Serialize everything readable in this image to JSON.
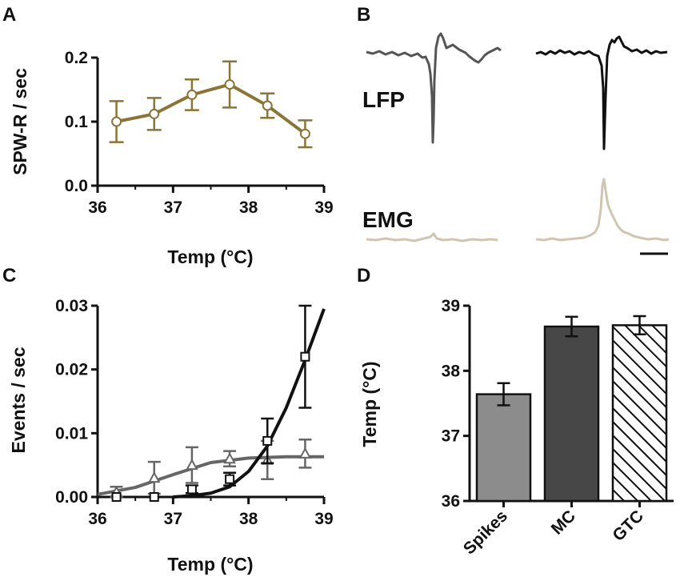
{
  "panels": {
    "a": {
      "letter": "A"
    },
    "b": {
      "letter": "B"
    },
    "c": {
      "letter": "C"
    },
    "d": {
      "letter": "D"
    }
  },
  "traces": {
    "lfp_label": "LFP",
    "emg_label": "EMG",
    "colors": {
      "lfp_left": "#555555",
      "lfp_right": "#111111",
      "emg": "#cfc6b2",
      "scale_bar": "#111111"
    }
  },
  "chart_data": [
    {
      "id": "A",
      "type": "line",
      "title": "",
      "xlabel": "Temp (°C)",
      "ylabel": "SPW-R / sec",
      "xlim": [
        36,
        39
      ],
      "ylim": [
        0,
        0.2
      ],
      "xticks": [
        36,
        37,
        38,
        39
      ],
      "xtick_labels": [
        "36",
        "37",
        "38",
        "39"
      ],
      "yticks": [
        0,
        0.1,
        0.2
      ],
      "ytick_labels": [
        "0.0",
        "0.1",
        "0.2"
      ],
      "color": "#8a7438",
      "series": [
        {
          "name": "SPW-R",
          "marker": "circle",
          "x": [
            36.25,
            36.75,
            37.25,
            37.75,
            38.25,
            38.75
          ],
          "y": [
            0.1,
            0.112,
            0.142,
            0.158,
            0.125,
            0.081
          ],
          "err": [
            0.032,
            0.025,
            0.024,
            0.036,
            0.019,
            0.021
          ]
        }
      ]
    },
    {
      "id": "C",
      "type": "scatter",
      "title": "",
      "xlabel": "Temp (°C)",
      "ylabel": "Events / sec",
      "xlim": [
        36,
        39
      ],
      "ylim": [
        0,
        0.03
      ],
      "xticks": [
        36,
        37,
        38,
        39
      ],
      "xtick_labels": [
        "36",
        "37",
        "38",
        "39"
      ],
      "yticks": [
        0,
        0.01,
        0.02,
        0.03
      ],
      "ytick_labels": [
        "0.00",
        "0.01",
        "0.02",
        "0.03"
      ],
      "series": [
        {
          "name": "triangles",
          "marker": "triangle",
          "color": "#666666",
          "x": [
            36.25,
            36.75,
            37.25,
            37.75,
            38.25,
            38.75
          ],
          "y": [
            0.0008,
            0.003,
            0.005,
            0.006,
            0.0058,
            0.0068
          ],
          "err": [
            0.0008,
            0.0025,
            0.0028,
            0.0012,
            0.003,
            0.0022
          ],
          "fit": [
            [
              36.0,
              0.0004
            ],
            [
              36.5,
              0.0015
            ],
            [
              37.0,
              0.0035
            ],
            [
              37.5,
              0.0054
            ],
            [
              38.0,
              0.0061
            ],
            [
              38.5,
              0.0063
            ],
            [
              39.0,
              0.0063
            ]
          ]
        },
        {
          "name": "squares",
          "marker": "square",
          "color": "#111111",
          "x": [
            36.25,
            36.75,
            37.25,
            37.75,
            38.25,
            38.75
          ],
          "y": [
            0.0,
            0.0,
            0.0012,
            0.0028,
            0.0088,
            0.022
          ],
          "err": [
            0.0,
            0.0,
            0.0006,
            0.001,
            0.0035,
            0.008
          ],
          "fit": [
            [
              37.0,
              0.0
            ],
            [
              37.25,
              0.0002
            ],
            [
              37.5,
              0.0006
            ],
            [
              37.75,
              0.0016
            ],
            [
              38.0,
              0.004
            ],
            [
              38.25,
              0.008
            ],
            [
              38.5,
              0.014
            ],
            [
              38.75,
              0.0215
            ],
            [
              39.0,
              0.0295
            ]
          ]
        }
      ]
    },
    {
      "id": "D",
      "type": "bar",
      "title": "",
      "xlabel": "",
      "ylabel": "Temp (°C)",
      "ylim": [
        36,
        39
      ],
      "yticks": [
        36,
        37,
        38,
        39
      ],
      "ytick_labels": [
        "36",
        "37",
        "38",
        "39"
      ],
      "categories": [
        "Spikes",
        "MC",
        "GTC"
      ],
      "values": [
        37.64,
        38.68,
        38.7
      ],
      "err": [
        0.17,
        0.15,
        0.14
      ],
      "fills": [
        "#8c8c8c",
        "#474747",
        "hatched"
      ]
    }
  ]
}
